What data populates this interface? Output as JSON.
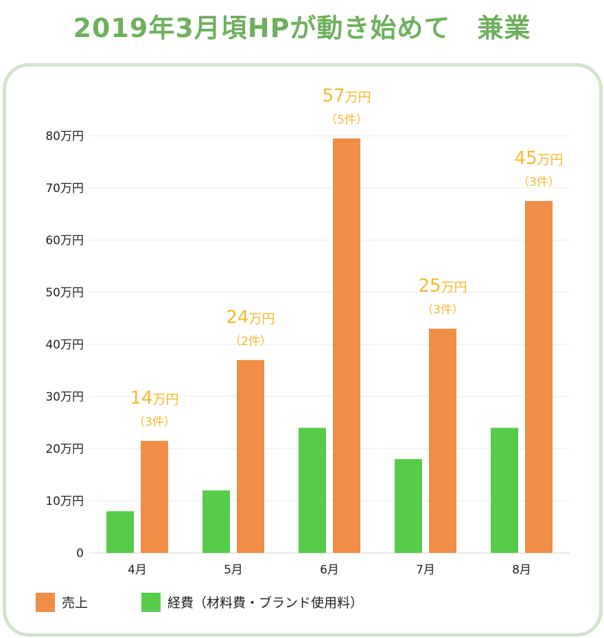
{
  "page": {
    "title": "2019年3月頃HPが動き始めて　兼業"
  },
  "chart_data": {
    "type": "bar",
    "title": "",
    "xlabel": "",
    "ylabel": "",
    "categories": [
      "4月",
      "5月",
      "6月",
      "7月",
      "8月"
    ],
    "series": [
      {
        "name": "経費（材料費・ブランド使用料）",
        "color": "#57cc4a",
        "values": [
          8,
          12,
          24,
          18,
          24
        ]
      },
      {
        "name": "売上",
        "color": "#f08d46",
        "values": [
          21.5,
          37,
          79.5,
          43,
          67.5
        ]
      }
    ],
    "ylim": [
      0,
      80
    ],
    "yticks": [
      0,
      10,
      20,
      30,
      40,
      50,
      60,
      70,
      80
    ],
    "ytick_labels": [
      "0",
      "10万円",
      "20万円",
      "30万円",
      "40万円",
      "50万円",
      "60万円",
      "70万円",
      "80万円"
    ],
    "grid": true,
    "legend_position": "bottom-left",
    "annotations": [
      {
        "value": "14",
        "unit": "万円",
        "count": "（3件）"
      },
      {
        "value": "24",
        "unit": "万円",
        "count": "（2件）"
      },
      {
        "value": "57",
        "unit": "万円",
        "count": "（5件）"
      },
      {
        "value": "25",
        "unit": "万円",
        "count": "（3件）"
      },
      {
        "value": "45",
        "unit": "万円",
        "count": "（3件）"
      }
    ],
    "annotation_color": "#f3b82c",
    "legend_order": [
      1,
      0
    ]
  }
}
